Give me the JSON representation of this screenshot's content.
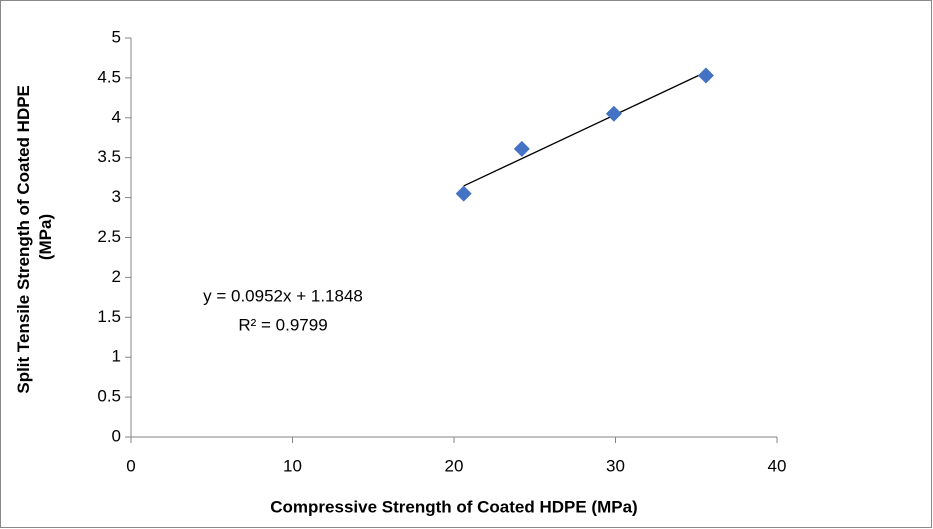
{
  "chart_data": {
    "type": "scatter",
    "x_label": "Compressive Strength of Coated HDPE (MPa)",
    "y_label": "Split Tensile Strength of Coated HDPE (MPa)",
    "x": [
      20.6,
      24.2,
      29.9,
      35.6
    ],
    "values": [
      3.05,
      3.61,
      4.05,
      4.53
    ],
    "color": "#4472c4",
    "xlim": [
      0,
      40
    ],
    "xticks": [
      0,
      10,
      20,
      30,
      40
    ],
    "ylim": [
      0,
      5
    ],
    "yticks": [
      0,
      0.5,
      1,
      1.5,
      2,
      2.5,
      3,
      3.5,
      4,
      4.5,
      5
    ],
    "grid": false,
    "trendline": {
      "slope": 0.0952,
      "intercept": 1.1848,
      "equation": "y = 0.0952x + 1.1848",
      "r_squared": 0.9799,
      "r_squared_label": "R² = 0.9799"
    }
  }
}
